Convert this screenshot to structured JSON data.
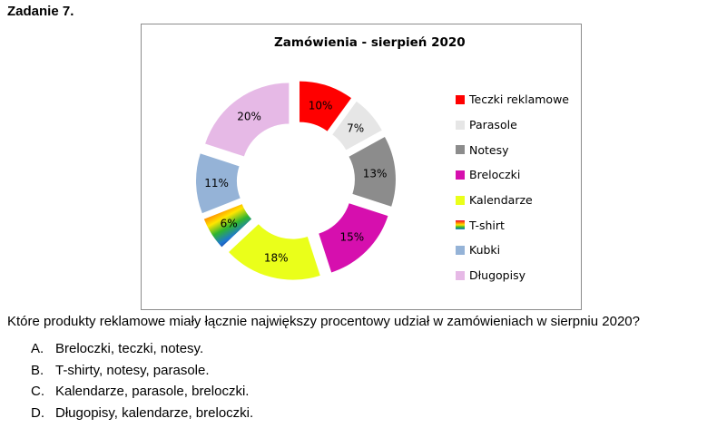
{
  "task": {
    "title": "Zadanie 7."
  },
  "chart_data": {
    "type": "pie",
    "title": "Zamówienia  - sierpień 2020",
    "categories": [
      "Teczki reklamowe",
      "Parasole",
      "Notesy",
      "Breloczki",
      "Kalendarze",
      "T-shirt",
      "Kubki",
      "Długopisy"
    ],
    "values": [
      10,
      7,
      13,
      15,
      18,
      6,
      11,
      20
    ],
    "value_labels": [
      "10%",
      "7%",
      "13%",
      "15%",
      "18%",
      "6%",
      "11%",
      "20%"
    ],
    "colors": [
      "#ff0000",
      "#e6e6e6",
      "#8c8c8c",
      "#d60fae",
      "#eaff1a",
      "rainbow",
      "#95b3d7",
      "#e6b9e6"
    ],
    "style": "exploded-doughnut",
    "legend_position": "right"
  },
  "question": {
    "text": "Które produkty reklamowe miały łącznie największy procentowy udział w zamówieniach w sierpniu 2020?",
    "answers": [
      {
        "letter": "A.",
        "text": "Breloczki, teczki, notesy."
      },
      {
        "letter": "B.",
        "text": "T-shirty, notesy, parasole."
      },
      {
        "letter": "C.",
        "text": "Kalendarze, parasole, breloczki."
      },
      {
        "letter": "D.",
        "text": "Długopisy, kalendarze, breloczki."
      }
    ]
  }
}
